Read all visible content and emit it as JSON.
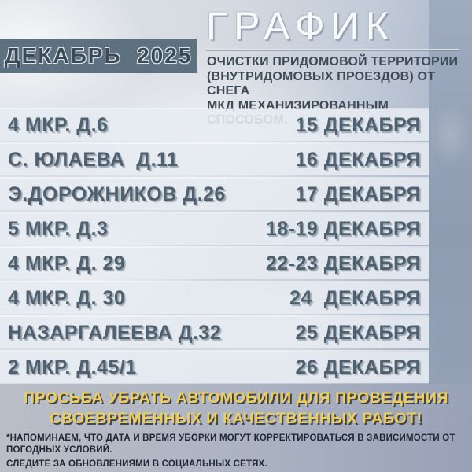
{
  "header": {
    "month_year": "ДЕКАБРЬ  2025",
    "title": "ГРАФИК",
    "subtitle": "ОЧИСТКИ ПРИДОМОВОЙ ТЕРРИТОРИИ\n(ВНУТРИДОМОВЫХ ПРОЕЗДОВ) ОТ СНЕГА\nМКД  МЕХАНИЗИРОВАННЫМ СПОСОБОМ."
  },
  "schedule": {
    "rows": [
      {
        "address": "4 МКР. Д.6",
        "date": "15 ДЕКАБРЯ"
      },
      {
        "address": "С. ЮЛАЕВА  Д.11",
        "date": "16 ДЕКАБРЯ"
      },
      {
        "address": "Э.ДОРОЖНИКОВ Д.26",
        "date": "17 ДЕКАБРЯ"
      },
      {
        "address": "5 МКР. Д.3",
        "date": "18-19 ДЕКАБРЯ"
      },
      {
        "address": "4 МКР. Д. 29",
        "date": "22-23 ДЕКАБРЯ"
      },
      {
        "address": "4 МКР. Д. 30",
        "date": "24  ДЕКАБРЯ"
      },
      {
        "address": "НАЗАРГАЛЕЕВА Д.32",
        "date": "25 ДЕКАБРЯ"
      },
      {
        "address": "2 МКР. Д.45/1",
        "date": "26 ДЕКАБРЯ"
      }
    ]
  },
  "footer": {
    "warning": "ПРОСЬБА   УБРАТЬ АВТОМОБИЛИ ДЛЯ ПРОВЕДЕНИЯ\nСВОЕВРЕМЕННЫХ И КАЧЕСТВЕННЫХ РАБОТ!",
    "note": "*НАПОМИНАЕМ, ЧТО ДАТА И ВРЕМЯ УБОРКИ МОГУТ КОРРЕКТИРОВАТЬСЯ В ЗАВИСИМОСТИ ОТ ПОГОДНЫХ УСЛОВИЙ.",
    "social": "СЛЕДИТЕ ЗА ОБНОВЛЕНИЯМИ В СОЦИАЛЬНЫХ СЕТЯХ."
  },
  "colors": {
    "month_box_bg": "#5e7181",
    "row_text": "#4f6170",
    "row_band_bg": "#e7ecf2",
    "accent_yellow": "#eecd5f",
    "note_text": "#202836",
    "right_band_blue": "#8f9bb1"
  }
}
